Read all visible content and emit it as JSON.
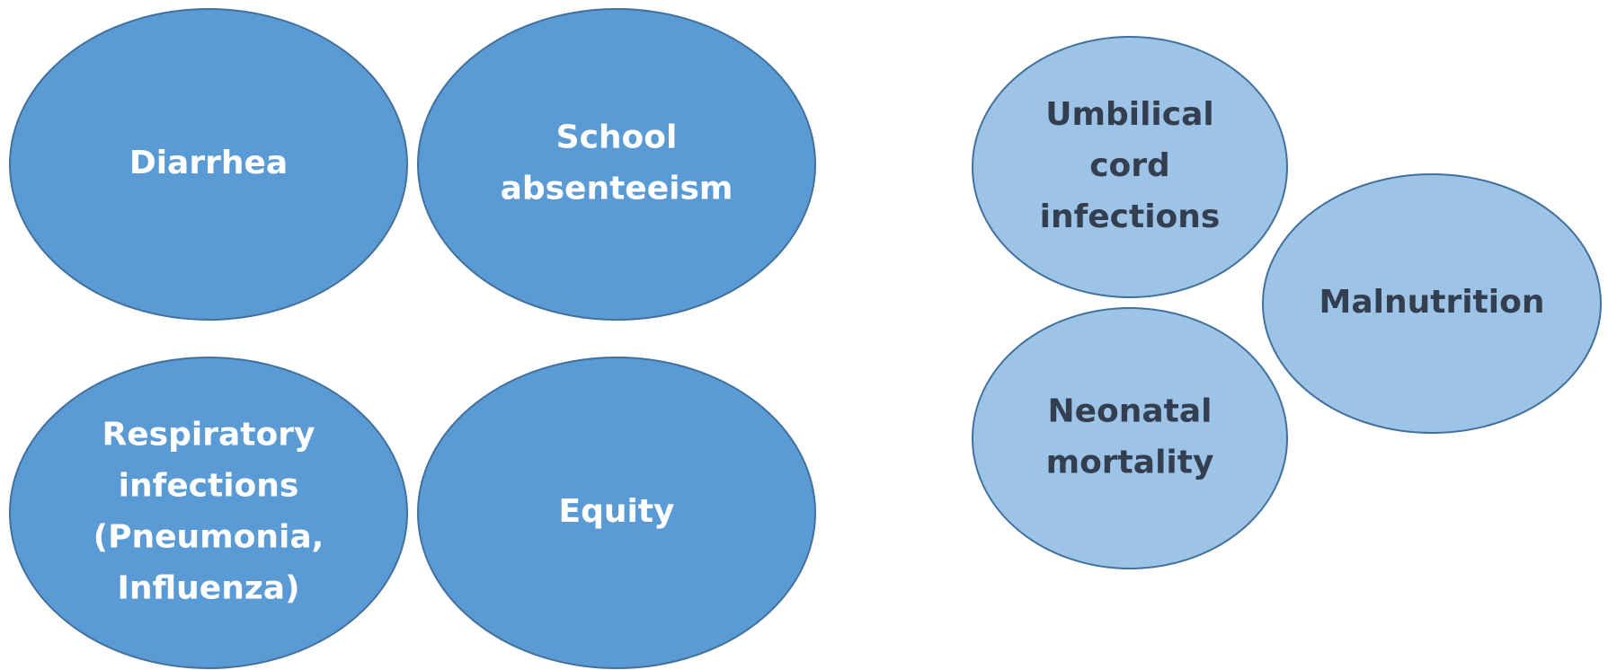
{
  "nodes": [
    {
      "lines": [
        "Diarrhea"
      ]
    },
    {
      "lines": [
        "School",
        "absenteeism"
      ]
    },
    {
      "lines": [
        "Respiratory",
        "infections",
        "(Pneumonia,",
        "Influenza)"
      ]
    },
    {
      "lines": [
        "Equity"
      ]
    },
    {
      "lines": [
        "Umbilical",
        "cord",
        "infections"
      ]
    },
    {
      "lines": [
        "Malnutrition"
      ]
    },
    {
      "lines": [
        "Neonatal",
        "mortality"
      ]
    }
  ]
}
